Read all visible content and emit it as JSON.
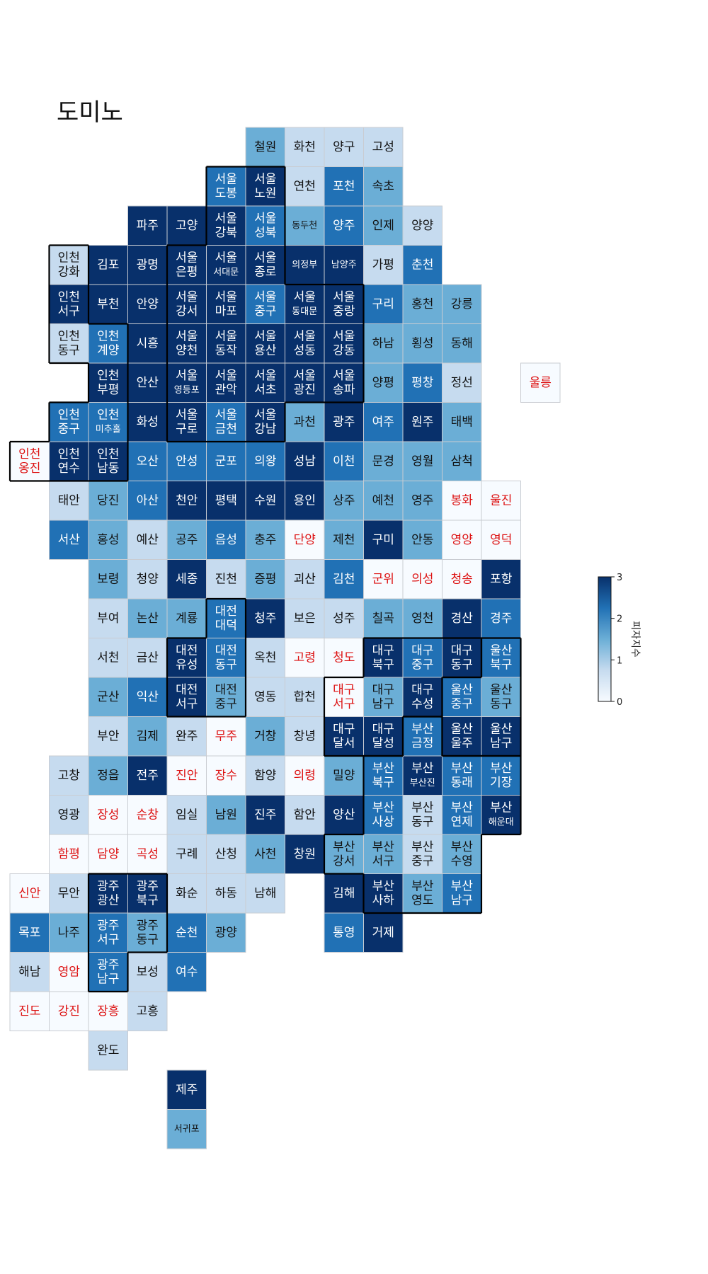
{
  "title": "도미노",
  "colorbar": {
    "label": "피자지수",
    "min": 0,
    "max": 3,
    "ticks": [
      0,
      1,
      2,
      3
    ]
  },
  "colors": {
    "scale": [
      "#f7fbff",
      "#c6dbef",
      "#6baed6",
      "#2171b5",
      "#08306b"
    ],
    "red_text": "#dd1111"
  },
  "chart_data": {
    "type": "heatmap",
    "columns": [
      "name",
      "col",
      "row",
      "value",
      "red"
    ],
    "cells": [
      [
        "철원",
        6,
        0,
        1,
        0
      ],
      [
        "화천",
        7,
        0,
        0,
        0
      ],
      [
        "양구",
        8,
        0,
        0,
        0
      ],
      [
        "고성",
        9,
        0,
        0,
        0
      ],
      [
        "서울\n도봉",
        5,
        1,
        2,
        0
      ],
      [
        "서울\n노원",
        6,
        1,
        3,
        0
      ],
      [
        "연천",
        7,
        1,
        0,
        0
      ],
      [
        "포천",
        8,
        1,
        2,
        0
      ],
      [
        "속초",
        9,
        1,
        1,
        0
      ],
      [
        "파주",
        3,
        2,
        3,
        0
      ],
      [
        "고양",
        4,
        2,
        3,
        0
      ],
      [
        "서울\n강북",
        5,
        2,
        3,
        0
      ],
      [
        "서울\n성북",
        6,
        2,
        2,
        0
      ],
      [
        "동두천",
        7,
        2,
        1,
        0
      ],
      [
        "양주",
        8,
        2,
        2,
        0
      ],
      [
        "인제",
        9,
        2,
        1,
        0
      ],
      [
        "양양",
        10,
        2,
        0,
        0
      ],
      [
        "인천\n강화",
        1,
        3,
        0,
        0
      ],
      [
        "김포",
        2,
        3,
        3,
        0
      ],
      [
        "광명",
        3,
        3,
        3,
        0
      ],
      [
        "서울\n은평",
        4,
        3,
        3,
        0
      ],
      [
        "서울\n서대문",
        5,
        3,
        3,
        0
      ],
      [
        "서울\n종로",
        6,
        3,
        3,
        0
      ],
      [
        "의정부",
        7,
        3,
        3,
        0
      ],
      [
        "남양주",
        8,
        3,
        3,
        0
      ],
      [
        "가평",
        9,
        3,
        0,
        0
      ],
      [
        "춘천",
        10,
        3,
        2,
        0
      ],
      [
        "인천\n서구",
        1,
        4,
        3,
        0
      ],
      [
        "부천",
        2,
        4,
        3,
        0
      ],
      [
        "안양",
        3,
        4,
        3,
        0
      ],
      [
        "서울\n강서",
        4,
        4,
        3,
        0
      ],
      [
        "서울\n마포",
        5,
        4,
        3,
        0
      ],
      [
        "서울\n중구",
        6,
        4,
        2,
        0
      ],
      [
        "서울\n동대문",
        7,
        4,
        3,
        0
      ],
      [
        "서울\n중랑",
        8,
        4,
        3,
        0
      ],
      [
        "구리",
        9,
        4,
        2,
        0
      ],
      [
        "홍천",
        10,
        4,
        1,
        0
      ],
      [
        "강릉",
        11,
        4,
        1,
        0
      ],
      [
        "인천\n동구",
        1,
        5,
        0,
        0
      ],
      [
        "인천\n계양",
        2,
        5,
        2,
        0
      ],
      [
        "시흥",
        3,
        5,
        3,
        0
      ],
      [
        "서울\n양천",
        4,
        5,
        3,
        0
      ],
      [
        "서울\n동작",
        5,
        5,
        3,
        0
      ],
      [
        "서울\n용산",
        6,
        5,
        3,
        0
      ],
      [
        "서울\n성동",
        7,
        5,
        3,
        0
      ],
      [
        "서울\n강동",
        8,
        5,
        3,
        0
      ],
      [
        "하남",
        9,
        5,
        1,
        0
      ],
      [
        "횡성",
        10,
        5,
        1,
        0
      ],
      [
        "동해",
        11,
        5,
        1,
        0
      ],
      [
        "인천\n부평",
        2,
        6,
        3,
        0
      ],
      [
        "안산",
        3,
        6,
        3,
        0
      ],
      [
        "서울\n영등포",
        4,
        6,
        3,
        0
      ],
      [
        "서울\n관악",
        5,
        6,
        3,
        0
      ],
      [
        "서울\n서초",
        6,
        6,
        3,
        0
      ],
      [
        "서울\n광진",
        7,
        6,
        3,
        0
      ],
      [
        "서울\n송파",
        8,
        6,
        3,
        0
      ],
      [
        "양평",
        9,
        6,
        1,
        0
      ],
      [
        "평창",
        10,
        6,
        2,
        0
      ],
      [
        "정선",
        11,
        6,
        0,
        0
      ],
      [
        "울릉",
        13,
        6,
        0,
        1
      ],
      [
        "인천\n중구",
        1,
        7,
        2,
        0
      ],
      [
        "인천\n미추홀",
        2,
        7,
        2,
        0
      ],
      [
        "화성",
        3,
        7,
        3,
        0
      ],
      [
        "서울\n구로",
        4,
        7,
        3,
        0
      ],
      [
        "서울\n금천",
        5,
        7,
        2,
        0
      ],
      [
        "서울\n강남",
        6,
        7,
        3,
        0
      ],
      [
        "과천",
        7,
        7,
        1,
        0
      ],
      [
        "광주",
        8,
        7,
        3,
        0
      ],
      [
        "여주",
        9,
        7,
        2,
        0
      ],
      [
        "원주",
        10,
        7,
        3,
        0
      ],
      [
        "태백",
        11,
        7,
        1,
        0
      ],
      [
        "인천\n옹진",
        0,
        8,
        0,
        1
      ],
      [
        "인천\n연수",
        1,
        8,
        3,
        0
      ],
      [
        "인천\n남동",
        2,
        8,
        3,
        0
      ],
      [
        "오산",
        3,
        8,
        2,
        0
      ],
      [
        "안성",
        4,
        8,
        2,
        0
      ],
      [
        "군포",
        5,
        8,
        2,
        0
      ],
      [
        "의왕",
        6,
        8,
        2,
        0
      ],
      [
        "성남",
        7,
        8,
        3,
        0
      ],
      [
        "이천",
        8,
        8,
        2,
        0
      ],
      [
        "문경",
        9,
        8,
        1,
        0
      ],
      [
        "영월",
        10,
        8,
        1,
        0
      ],
      [
        "삼척",
        11,
        8,
        1,
        0
      ],
      [
        "태안",
        1,
        9,
        0,
        0
      ],
      [
        "당진",
        2,
        9,
        1,
        0
      ],
      [
        "아산",
        3,
        9,
        2,
        0
      ],
      [
        "천안",
        4,
        9,
        3,
        0
      ],
      [
        "평택",
        5,
        9,
        3,
        0
      ],
      [
        "수원",
        6,
        9,
        3,
        0
      ],
      [
        "용인",
        7,
        9,
        3,
        0
      ],
      [
        "상주",
        8,
        9,
        1,
        0
      ],
      [
        "예천",
        9,
        9,
        1,
        0
      ],
      [
        "영주",
        10,
        9,
        1,
        0
      ],
      [
        "봉화",
        11,
        9,
        0,
        1
      ],
      [
        "울진",
        12,
        9,
        0,
        1
      ],
      [
        "서산",
        1,
        10,
        2,
        0
      ],
      [
        "홍성",
        2,
        10,
        1,
        0
      ],
      [
        "예산",
        3,
        10,
        0,
        0
      ],
      [
        "공주",
        4,
        10,
        1,
        0
      ],
      [
        "음성",
        5,
        10,
        2,
        0
      ],
      [
        "충주",
        6,
        10,
        1,
        0
      ],
      [
        "단양",
        7,
        10,
        0,
        1
      ],
      [
        "제천",
        8,
        10,
        1,
        0
      ],
      [
        "구미",
        9,
        10,
        3,
        0
      ],
      [
        "안동",
        10,
        10,
        1,
        0
      ],
      [
        "영양",
        11,
        10,
        0,
        1
      ],
      [
        "영덕",
        12,
        10,
        0,
        1
      ],
      [
        "보령",
        2,
        11,
        1,
        0
      ],
      [
        "청양",
        3,
        11,
        0,
        0
      ],
      [
        "세종",
        4,
        11,
        3,
        0
      ],
      [
        "진천",
        5,
        11,
        0,
        0
      ],
      [
        "증평",
        6,
        11,
        1,
        0
      ],
      [
        "괴산",
        7,
        11,
        0,
        0
      ],
      [
        "김천",
        8,
        11,
        2,
        0
      ],
      [
        "군위",
        9,
        11,
        0,
        1
      ],
      [
        "의성",
        10,
        11,
        0,
        1
      ],
      [
        "청송",
        11,
        11,
        0,
        1
      ],
      [
        "포항",
        12,
        11,
        3,
        0
      ],
      [
        "부여",
        2,
        12,
        0,
        0
      ],
      [
        "논산",
        3,
        12,
        1,
        0
      ],
      [
        "계룡",
        4,
        12,
        1,
        0
      ],
      [
        "대전\n대덕",
        5,
        12,
        2,
        0
      ],
      [
        "청주",
        6,
        12,
        3,
        0
      ],
      [
        "보은",
        7,
        12,
        0,
        0
      ],
      [
        "성주",
        8,
        12,
        0,
        0
      ],
      [
        "칠곡",
        9,
        12,
        1,
        0
      ],
      [
        "영천",
        10,
        12,
        1,
        0
      ],
      [
        "경산",
        11,
        12,
        3,
        0
      ],
      [
        "경주",
        12,
        12,
        2,
        0
      ],
      [
        "서천",
        2,
        13,
        0,
        0
      ],
      [
        "금산",
        3,
        13,
        0,
        0
      ],
      [
        "대전\n유성",
        4,
        13,
        3,
        0
      ],
      [
        "대전\n동구",
        5,
        13,
        2,
        0
      ],
      [
        "옥천",
        6,
        13,
        0,
        0
      ],
      [
        "고령",
        7,
        13,
        0,
        1
      ],
      [
        "청도",
        8,
        13,
        0,
        1
      ],
      [
        "대구\n북구",
        9,
        13,
        3,
        0
      ],
      [
        "대구\n중구",
        10,
        13,
        2,
        0
      ],
      [
        "대구\n동구",
        11,
        13,
        3,
        0
      ],
      [
        "울산\n북구",
        12,
        13,
        2,
        0
      ],
      [
        "군산",
        2,
        14,
        1,
        0
      ],
      [
        "익산",
        3,
        14,
        2,
        0
      ],
      [
        "대전\n서구",
        4,
        14,
        3,
        0
      ],
      [
        "대전\n중구",
        5,
        14,
        1,
        0
      ],
      [
        "영동",
        6,
        14,
        0,
        0
      ],
      [
        "합천",
        7,
        14,
        0,
        0
      ],
      [
        "대구\n서구",
        8,
        14,
        0,
        1
      ],
      [
        "대구\n남구",
        9,
        14,
        1,
        0
      ],
      [
        "대구\n수성",
        10,
        14,
        3,
        0
      ],
      [
        "울산\n중구",
        11,
        14,
        2,
        0
      ],
      [
        "울산\n동구",
        12,
        14,
        1,
        0
      ],
      [
        "부안",
        2,
        15,
        0,
        0
      ],
      [
        "김제",
        3,
        15,
        1,
        0
      ],
      [
        "완주",
        4,
        15,
        0,
        0
      ],
      [
        "무주",
        5,
        15,
        0,
        1
      ],
      [
        "거창",
        6,
        15,
        1,
        0
      ],
      [
        "창녕",
        7,
        15,
        0,
        0
      ],
      [
        "대구\n달서",
        8,
        15,
        3,
        0
      ],
      [
        "대구\n달성",
        9,
        15,
        3,
        0
      ],
      [
        "부산\n금정",
        10,
        15,
        2,
        0
      ],
      [
        "울산\n울주",
        11,
        15,
        3,
        0
      ],
      [
        "울산\n남구",
        12,
        15,
        3,
        0
      ],
      [
        "고창",
        1,
        16,
        0,
        0
      ],
      [
        "정읍",
        2,
        16,
        1,
        0
      ],
      [
        "전주",
        3,
        16,
        3,
        0
      ],
      [
        "진안",
        4,
        16,
        0,
        1
      ],
      [
        "장수",
        5,
        16,
        0,
        1
      ],
      [
        "함양",
        6,
        16,
        0,
        0
      ],
      [
        "의령",
        7,
        16,
        0,
        1
      ],
      [
        "밀양",
        8,
        16,
        1,
        0
      ],
      [
        "부산\n북구",
        9,
        16,
        2,
        0
      ],
      [
        "부산\n부산진",
        10,
        16,
        3,
        0
      ],
      [
        "부산\n동래",
        11,
        16,
        2,
        0
      ],
      [
        "부산\n기장",
        12,
        16,
        2,
        0
      ],
      [
        "영광",
        1,
        17,
        0,
        0
      ],
      [
        "장성",
        2,
        17,
        0,
        1
      ],
      [
        "순창",
        3,
        17,
        0,
        1
      ],
      [
        "임실",
        4,
        17,
        0,
        0
      ],
      [
        "남원",
        5,
        17,
        1,
        0
      ],
      [
        "진주",
        6,
        17,
        3,
        0
      ],
      [
        "함안",
        7,
        17,
        0,
        0
      ],
      [
        "양산",
        8,
        17,
        3,
        0
      ],
      [
        "부산\n사상",
        9,
        17,
        2,
        0
      ],
      [
        "부산\n동구",
        10,
        17,
        0,
        0
      ],
      [
        "부산\n연제",
        11,
        17,
        2,
        0
      ],
      [
        "부산\n해운대",
        12,
        17,
        3,
        0
      ],
      [
        "함평",
        1,
        18,
        0,
        1
      ],
      [
        "담양",
        2,
        18,
        0,
        1
      ],
      [
        "곡성",
        3,
        18,
        0,
        1
      ],
      [
        "구례",
        4,
        18,
        0,
        0
      ],
      [
        "산청",
        5,
        18,
        0,
        0
      ],
      [
        "사천",
        6,
        18,
        1,
        0
      ],
      [
        "창원",
        7,
        18,
        3,
        0
      ],
      [
        "부산\n강서",
        8,
        18,
        1,
        0
      ],
      [
        "부산\n서구",
        9,
        18,
        1,
        0
      ],
      [
        "부산\n중구",
        10,
        18,
        0,
        0
      ],
      [
        "부산\n수영",
        11,
        18,
        1,
        0
      ],
      [
        "신안",
        0,
        19,
        0,
        1
      ],
      [
        "무안",
        1,
        19,
        0,
        0
      ],
      [
        "광주\n광산",
        2,
        19,
        3,
        0
      ],
      [
        "광주\n북구",
        3,
        19,
        3,
        0
      ],
      [
        "화순",
        4,
        19,
        0,
        0
      ],
      [
        "하동",
        5,
        19,
        0,
        0
      ],
      [
        "남해",
        6,
        19,
        0,
        0
      ],
      [
        "김해",
        8,
        19,
        3,
        0
      ],
      [
        "부산\n사하",
        9,
        19,
        3,
        0
      ],
      [
        "부산\n영도",
        10,
        19,
        1,
        0
      ],
      [
        "부산\n남구",
        11,
        19,
        2,
        0
      ],
      [
        "목포",
        0,
        20,
        2,
        0
      ],
      [
        "나주",
        1,
        20,
        1,
        0
      ],
      [
        "광주\n서구",
        2,
        20,
        2,
        0
      ],
      [
        "광주\n동구",
        3,
        20,
        1,
        0
      ],
      [
        "순천",
        4,
        20,
        2,
        0
      ],
      [
        "광양",
        5,
        20,
        1,
        0
      ],
      [
        "통영",
        8,
        20,
        2,
        0
      ],
      [
        "거제",
        9,
        20,
        3,
        0
      ],
      [
        "해남",
        0,
        21,
        0,
        0
      ],
      [
        "영암",
        1,
        21,
        0,
        1
      ],
      [
        "광주\n남구",
        2,
        21,
        2,
        0
      ],
      [
        "보성",
        3,
        21,
        0,
        0
      ],
      [
        "여수",
        4,
        21,
        2,
        0
      ],
      [
        "진도",
        0,
        22,
        0,
        1
      ],
      [
        "강진",
        1,
        22,
        0,
        1
      ],
      [
        "장흥",
        2,
        22,
        0,
        1
      ],
      [
        "고흥",
        3,
        22,
        0,
        0
      ],
      [
        "완도",
        2,
        23,
        0,
        0
      ],
      [
        "제주",
        4,
        24,
        3,
        0
      ],
      [
        "서귀포",
        4,
        25,
        1,
        0
      ]
    ]
  }
}
